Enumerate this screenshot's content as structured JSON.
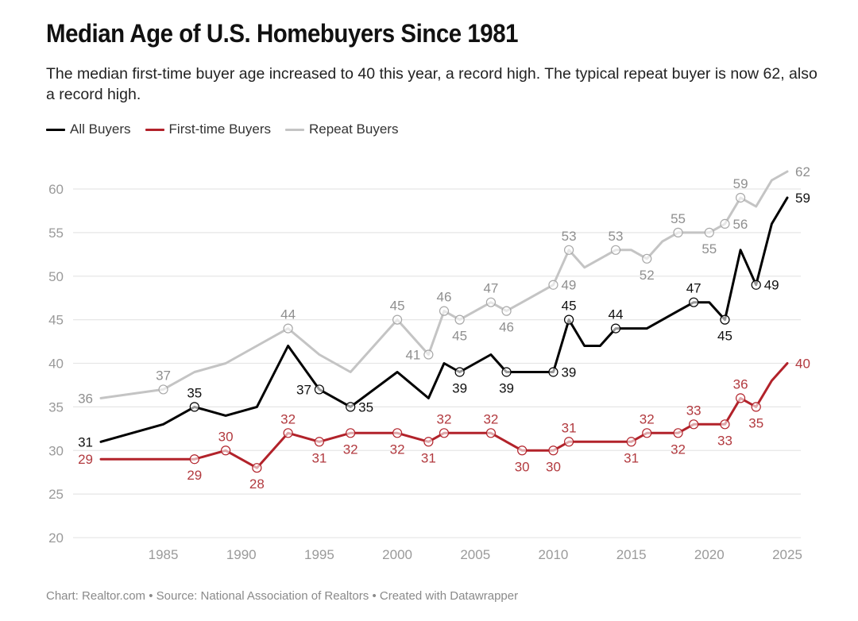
{
  "title": "Median Age of U.S. Homebuyers Since 1981",
  "subtitle": "The median first-time buyer age increased to 40 this year, a record high. The typical repeat buyer is now 62, also a record high.",
  "footer": "Chart: Realtor.com • Source: National Association of Realtors • Created with Datawrapper",
  "legend": [
    {
      "label": "All Buyers",
      "color": "#000000"
    },
    {
      "label": "First-time Buyers",
      "color": "#b2222a"
    },
    {
      "label": "Repeat Buyers",
      "color": "#c4c4c4"
    }
  ],
  "chart_data": {
    "type": "line",
    "title": "Median Age of U.S. Homebuyers Since 1981",
    "xlabel": "",
    "ylabel": "",
    "xlim": [
      1981,
      2025
    ],
    "ylim": [
      20,
      62
    ],
    "yticks": [
      20,
      25,
      30,
      35,
      40,
      45,
      50,
      55,
      60
    ],
    "xticks": [
      1985,
      1990,
      1995,
      2000,
      2005,
      2010,
      2015,
      2020,
      2025
    ],
    "grid": true,
    "legend_position": "top-left",
    "x": [
      1981,
      1985,
      1987,
      1989,
      1991,
      1993,
      1995,
      1997,
      2000,
      2002,
      2003,
      2004,
      2006,
      2007,
      2008,
      2010,
      2011,
      2012,
      2013,
      2014,
      2015,
      2016,
      2017,
      2018,
      2019,
      2020,
      2021,
      2022,
      2023,
      2024,
      2025
    ],
    "series": [
      {
        "name": "Repeat Buyers",
        "color": "#c4c4c4",
        "label_color": "#8f8f8f",
        "values": [
          36,
          37,
          39,
          40,
          42,
          44,
          41,
          39,
          45,
          41,
          46,
          45,
          47,
          46,
          47,
          49,
          53,
          51,
          52,
          53,
          53,
          52,
          54,
          55,
          55,
          55,
          56,
          59,
          58,
          61,
          62
        ],
        "labels": [
          {
            "x": 1981,
            "text": "36",
            "pos": "left",
            "marker": false
          },
          {
            "x": 1985,
            "text": "37",
            "pos": "above",
            "marker": true
          },
          {
            "x": 1993,
            "text": "44",
            "pos": "above",
            "marker": true
          },
          {
            "x": 2000,
            "text": "45",
            "pos": "above",
            "marker": true
          },
          {
            "x": 2002,
            "text": "41",
            "pos": "left",
            "marker": true
          },
          {
            "x": 2003,
            "text": "46",
            "pos": "above",
            "marker": true
          },
          {
            "x": 2004,
            "text": "45",
            "pos": "below",
            "marker": true
          },
          {
            "x": 2006,
            "text": "47",
            "pos": "above",
            "marker": true
          },
          {
            "x": 2007,
            "text": "46",
            "pos": "below",
            "marker": true
          },
          {
            "x": 2010,
            "text": "49",
            "pos": "right",
            "marker": true
          },
          {
            "x": 2011,
            "text": "53",
            "pos": "above",
            "marker": true
          },
          {
            "x": 2014,
            "text": "53",
            "pos": "above",
            "marker": true
          },
          {
            "x": 2016,
            "text": "52",
            "pos": "below",
            "marker": true
          },
          {
            "x": 2018,
            "text": "55",
            "pos": "above",
            "marker": true
          },
          {
            "x": 2020,
            "text": "55",
            "pos": "below",
            "marker": true
          },
          {
            "x": 2021,
            "text": "56",
            "pos": "right",
            "marker": true
          },
          {
            "x": 2022,
            "text": "59",
            "pos": "above",
            "marker": true
          },
          {
            "x": 2025,
            "text": "62",
            "pos": "right",
            "marker": false
          }
        ]
      },
      {
        "name": "All Buyers",
        "color": "#000000",
        "label_color": "#111111",
        "values": [
          31,
          33,
          35,
          34,
          35,
          42,
          37,
          35,
          39,
          36,
          40,
          39,
          41,
          39,
          39,
          39,
          45,
          42,
          42,
          44,
          44,
          44,
          45,
          46,
          47,
          47,
          45,
          53,
          49,
          56,
          59
        ],
        "labels": [
          {
            "x": 1981,
            "text": "31",
            "pos": "left",
            "marker": false
          },
          {
            "x": 1987,
            "text": "35",
            "pos": "above",
            "marker": true
          },
          {
            "x": 1995,
            "text": "37",
            "pos": "left",
            "marker": true
          },
          {
            "x": 1997,
            "text": "35",
            "pos": "right",
            "marker": true
          },
          {
            "x": 2004,
            "text": "39",
            "pos": "below",
            "marker": true
          },
          {
            "x": 2007,
            "text": "39",
            "pos": "below",
            "marker": true
          },
          {
            "x": 2010,
            "text": "39",
            "pos": "right",
            "marker": true
          },
          {
            "x": 2011,
            "text": "45",
            "pos": "above",
            "marker": true
          },
          {
            "x": 2014,
            "text": "44",
            "pos": "above",
            "marker": true
          },
          {
            "x": 2019,
            "text": "47",
            "pos": "above",
            "marker": true
          },
          {
            "x": 2021,
            "text": "45",
            "pos": "below",
            "marker": true
          },
          {
            "x": 2023,
            "text": "49",
            "pos": "right",
            "marker": true
          },
          {
            "x": 2025,
            "text": "59",
            "pos": "right",
            "marker": false
          }
        ]
      },
      {
        "name": "First-time Buyers",
        "color": "#b2222a",
        "label_color": "#b23a3f",
        "values": [
          29,
          29,
          29,
          30,
          28,
          32,
          31,
          32,
          32,
          31,
          32,
          32,
          32,
          31,
          30,
          30,
          31,
          31,
          31,
          31,
          31,
          32,
          32,
          32,
          33,
          33,
          33,
          36,
          35,
          38,
          40
        ],
        "labels": [
          {
            "x": 1981,
            "text": "29",
            "pos": "left",
            "marker": false
          },
          {
            "x": 1987,
            "text": "29",
            "pos": "below",
            "marker": true
          },
          {
            "x": 1989,
            "text": "30",
            "pos": "above",
            "marker": true
          },
          {
            "x": 1991,
            "text": "28",
            "pos": "below",
            "marker": true
          },
          {
            "x": 1993,
            "text": "32",
            "pos": "above",
            "marker": true
          },
          {
            "x": 1995,
            "text": "31",
            "pos": "below",
            "marker": true
          },
          {
            "x": 1997,
            "text": "32",
            "pos": "below",
            "marker": true
          },
          {
            "x": 2000,
            "text": "32",
            "pos": "below",
            "marker": true
          },
          {
            "x": 2002,
            "text": "31",
            "pos": "below",
            "marker": true
          },
          {
            "x": 2003,
            "text": "32",
            "pos": "above",
            "marker": true
          },
          {
            "x": 2006,
            "text": "32",
            "pos": "above",
            "marker": true
          },
          {
            "x": 2008,
            "text": "30",
            "pos": "below",
            "marker": true
          },
          {
            "x": 2010,
            "text": "30",
            "pos": "below",
            "marker": true
          },
          {
            "x": 2011,
            "text": "31",
            "pos": "above",
            "marker": true
          },
          {
            "x": 2015,
            "text": "31",
            "pos": "below",
            "marker": true
          },
          {
            "x": 2016,
            "text": "32",
            "pos": "above",
            "marker": true
          },
          {
            "x": 2018,
            "text": "32",
            "pos": "below",
            "marker": true
          },
          {
            "x": 2019,
            "text": "33",
            "pos": "above",
            "marker": true
          },
          {
            "x": 2021,
            "text": "33",
            "pos": "below",
            "marker": true
          },
          {
            "x": 2022,
            "text": "36",
            "pos": "above",
            "marker": true
          },
          {
            "x": 2023,
            "text": "35",
            "pos": "below",
            "marker": true
          },
          {
            "x": 2025,
            "text": "40",
            "pos": "right",
            "marker": false
          }
        ]
      }
    ]
  }
}
